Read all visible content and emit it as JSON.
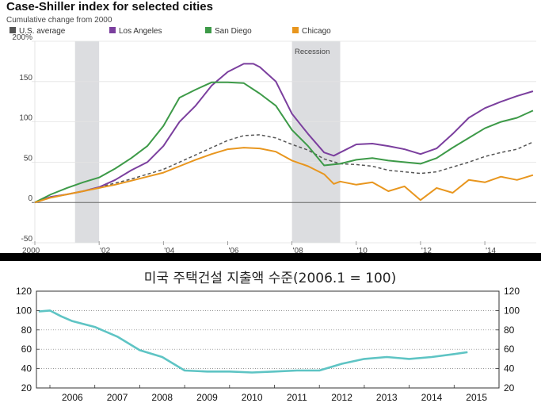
{
  "chart_data": [
    {
      "type": "line",
      "title": "Case-Shiller index for selected cities",
      "subtitle": "Cumulative change from 2000",
      "ylim": [
        -50,
        200
      ],
      "y_ticks": [
        "200%",
        "150",
        "100",
        "50",
        "0",
        "-50"
      ],
      "y_tick_values": [
        200,
        150,
        100,
        50,
        0,
        -50
      ],
      "xlim": [
        2000,
        2015.6
      ],
      "x_ticks": [
        "2000",
        "'02",
        "'04",
        "'06",
        "'08",
        "'10",
        "'12",
        "'14"
      ],
      "x_tick_values": [
        2000,
        2002,
        2004,
        2006,
        2008,
        2010,
        2012,
        2014
      ],
      "shaded_periods": [
        [
          2001.25,
          2002.0
        ],
        [
          2008.0,
          2009.5
        ]
      ],
      "annotation": "Recession",
      "legend_position": "top-left",
      "grid": "horizontal",
      "series": [
        {
          "name": "U.S. average",
          "color": "#555555",
          "dash": true,
          "x": [
            2000,
            2000.5,
            2001,
            2001.5,
            2002,
            2002.5,
            2003,
            2003.5,
            2004,
            2004.5,
            2005,
            2005.5,
            2006,
            2006.5,
            2007,
            2007.5,
            2008,
            2008.5,
            2009,
            2009.5,
            2010,
            2010.5,
            2011,
            2011.5,
            2012,
            2012.5,
            2013,
            2013.5,
            2014,
            2014.5,
            2015,
            2015.5
          ],
          "y": [
            0,
            6,
            10,
            14,
            19,
            24,
            29,
            35,
            41,
            50,
            59,
            68,
            77,
            83,
            84,
            80,
            72,
            65,
            54,
            48,
            47,
            45,
            40,
            38,
            36,
            38,
            44,
            50,
            57,
            62,
            66,
            75
          ]
        },
        {
          "name": "Los Angeles",
          "color": "#7b3f9e",
          "dash": false,
          "x": [
            2000,
            2000.5,
            2001,
            2001.5,
            2002,
            2002.5,
            2003,
            2003.5,
            2004,
            2004.5,
            2005,
            2005.5,
            2006,
            2006.5,
            2006.8,
            2007,
            2007.5,
            2008,
            2008.5,
            2009,
            2009.3,
            2009.5,
            2010,
            2010.5,
            2011,
            2011.5,
            2012,
            2012.5,
            2013,
            2013.5,
            2014,
            2014.5,
            2015,
            2015.5
          ],
          "y": [
            0,
            7,
            10,
            14,
            19,
            28,
            40,
            50,
            70,
            100,
            120,
            145,
            162,
            172,
            172,
            168,
            150,
            110,
            85,
            62,
            58,
            62,
            72,
            73,
            70,
            66,
            60,
            67,
            85,
            105,
            117,
            125,
            132,
            138
          ]
        },
        {
          "name": "San Diego",
          "color": "#3d9a48",
          "dash": false,
          "x": [
            2000,
            2000.5,
            2001,
            2001.5,
            2002,
            2002.5,
            2003,
            2003.5,
            2004,
            2004.5,
            2005,
            2005.5,
            2006,
            2006.5,
            2007,
            2007.5,
            2008,
            2008.5,
            2009,
            2009.5,
            2010,
            2010.5,
            2011,
            2011.5,
            2012,
            2012.5,
            2013,
            2013.5,
            2014,
            2014.5,
            2015,
            2015.5
          ],
          "y": [
            0,
            10,
            18,
            25,
            31,
            42,
            55,
            70,
            95,
            130,
            140,
            149,
            149,
            148,
            135,
            120,
            90,
            70,
            46,
            48,
            53,
            55,
            52,
            50,
            48,
            55,
            68,
            80,
            92,
            100,
            105,
            114
          ]
        },
        {
          "name": "Chicago",
          "color": "#e8961e",
          "dash": false,
          "x": [
            2000,
            2000.5,
            2001,
            2001.5,
            2002,
            2002.5,
            2003,
            2003.5,
            2004,
            2004.5,
            2005,
            2005.5,
            2006,
            2006.5,
            2007,
            2007.5,
            2008,
            2008.5,
            2009,
            2009.3,
            2009.5,
            2010,
            2010.5,
            2011,
            2011.5,
            2012,
            2012.5,
            2013,
            2013.5,
            2014,
            2014.5,
            2015,
            2015.5
          ],
          "y": [
            0,
            6,
            10,
            14,
            18,
            22,
            27,
            32,
            37,
            45,
            53,
            60,
            66,
            68,
            67,
            63,
            52,
            45,
            35,
            23,
            26,
            22,
            25,
            14,
            20,
            3,
            18,
            12,
            28,
            25,
            32,
            28,
            34
          ]
        }
      ]
    },
    {
      "type": "line",
      "title": "미국 주택건설 지출액 수준(2006.1 = 100)",
      "ylim": [
        20,
        120
      ],
      "y_ticks": [
        "120",
        "100",
        "80",
        "60",
        "40",
        "20"
      ],
      "y_tick_values": [
        120,
        100,
        80,
        60,
        40,
        20
      ],
      "x_categories": [
        "2006",
        "2007",
        "2008",
        "2009",
        "2010",
        "2011",
        "2012",
        "2013",
        "2014",
        "2015"
      ],
      "xlim": [
        2005.7,
        2016.0
      ],
      "grid": "horizontal dotted",
      "series": [
        {
          "color": "#5ec4c4",
          "x": [
            2005.75,
            2006.0,
            2006.25,
            2006.5,
            2007.0,
            2007.5,
            2008.0,
            2008.5,
            2009.0,
            2009.5,
            2010.0,
            2010.5,
            2011.0,
            2011.5,
            2012.0,
            2012.5,
            2013.0,
            2013.5,
            2014.0,
            2014.5,
            2015.0,
            2015.3
          ],
          "y": [
            99,
            100,
            94,
            89,
            83,
            73,
            59,
            52,
            38,
            37,
            37,
            36,
            37,
            38,
            38,
            45,
            50,
            52,
            50,
            52,
            55,
            57
          ]
        }
      ]
    }
  ]
}
